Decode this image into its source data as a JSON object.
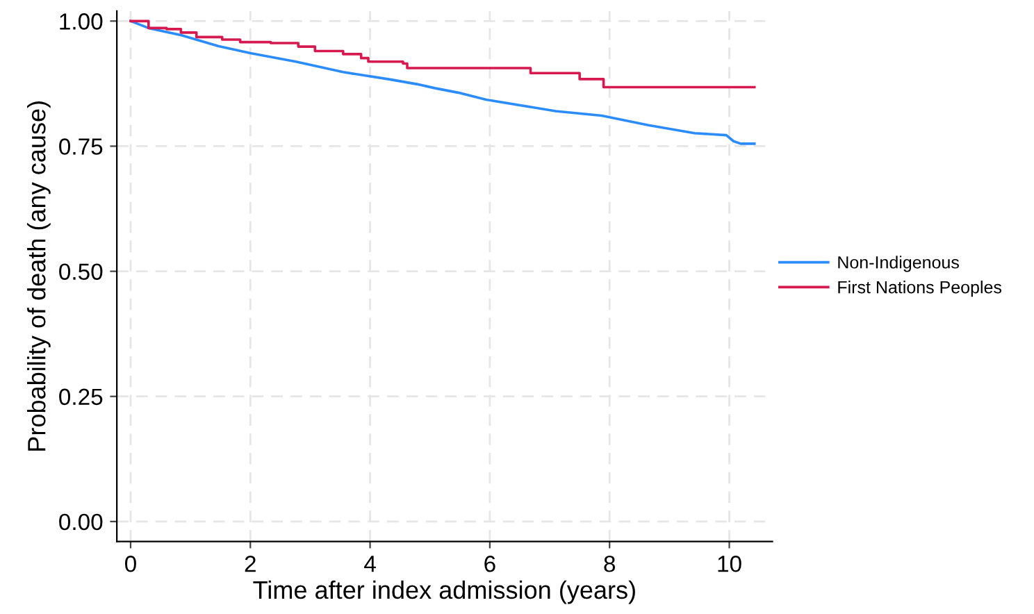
{
  "chart_data": {
    "type": "step",
    "xlabel": "Time after index admission (years)",
    "ylabel": "Probability of death (any cause)",
    "xlim": [
      -0.23,
      10.72
    ],
    "ylim": [
      -0.04,
      1.02
    ],
    "xticks": [
      0,
      2,
      4,
      6,
      8,
      10
    ],
    "yticks": [
      {
        "value": 0,
        "label": "0.00"
      },
      {
        "value": 0.25,
        "label": "0.25"
      },
      {
        "value": 0.5,
        "label": "0.50"
      },
      {
        "value": 0.75,
        "label": "0.75"
      },
      {
        "value": 1,
        "label": "1.00"
      }
    ],
    "grid": true,
    "legend": "right",
    "line_style": "solid",
    "marker": "none",
    "series": [
      {
        "name": "Non-Indigenous",
        "type": "line",
        "color": "#2a8cff",
        "x": [
          0,
          0.3,
          0.84,
          1.46,
          2.0,
          2.76,
          3.55,
          4.3,
          4.78,
          5.08,
          5.47,
          5.94,
          7.1,
          7.87,
          8.65,
          9.42,
          9.95,
          10.07,
          10.19,
          10.42
        ],
        "values": [
          1.0,
          0.986,
          0.972,
          0.95,
          0.936,
          0.919,
          0.898,
          0.884,
          0.874,
          0.866,
          0.857,
          0.843,
          0.82,
          0.811,
          0.792,
          0.776,
          0.772,
          0.76,
          0.755,
          0.755
        ]
      },
      {
        "name": "First Nations Peoples",
        "color": "#d6194f",
        "x": [
          0,
          0.3,
          0.6,
          0.84,
          1.1,
          1.53,
          1.83,
          2.34,
          2.8,
          3.08,
          3.55,
          3.85,
          3.97,
          4.55,
          4.62,
          6.68,
          7.5,
          7.9,
          10.42
        ],
        "values": [
          1.0,
          0.986,
          0.984,
          0.977,
          0.968,
          0.963,
          0.958,
          0.956,
          0.949,
          0.94,
          0.934,
          0.926,
          0.919,
          0.915,
          0.906,
          0.896,
          0.884,
          0.868,
          0.868
        ]
      }
    ]
  }
}
